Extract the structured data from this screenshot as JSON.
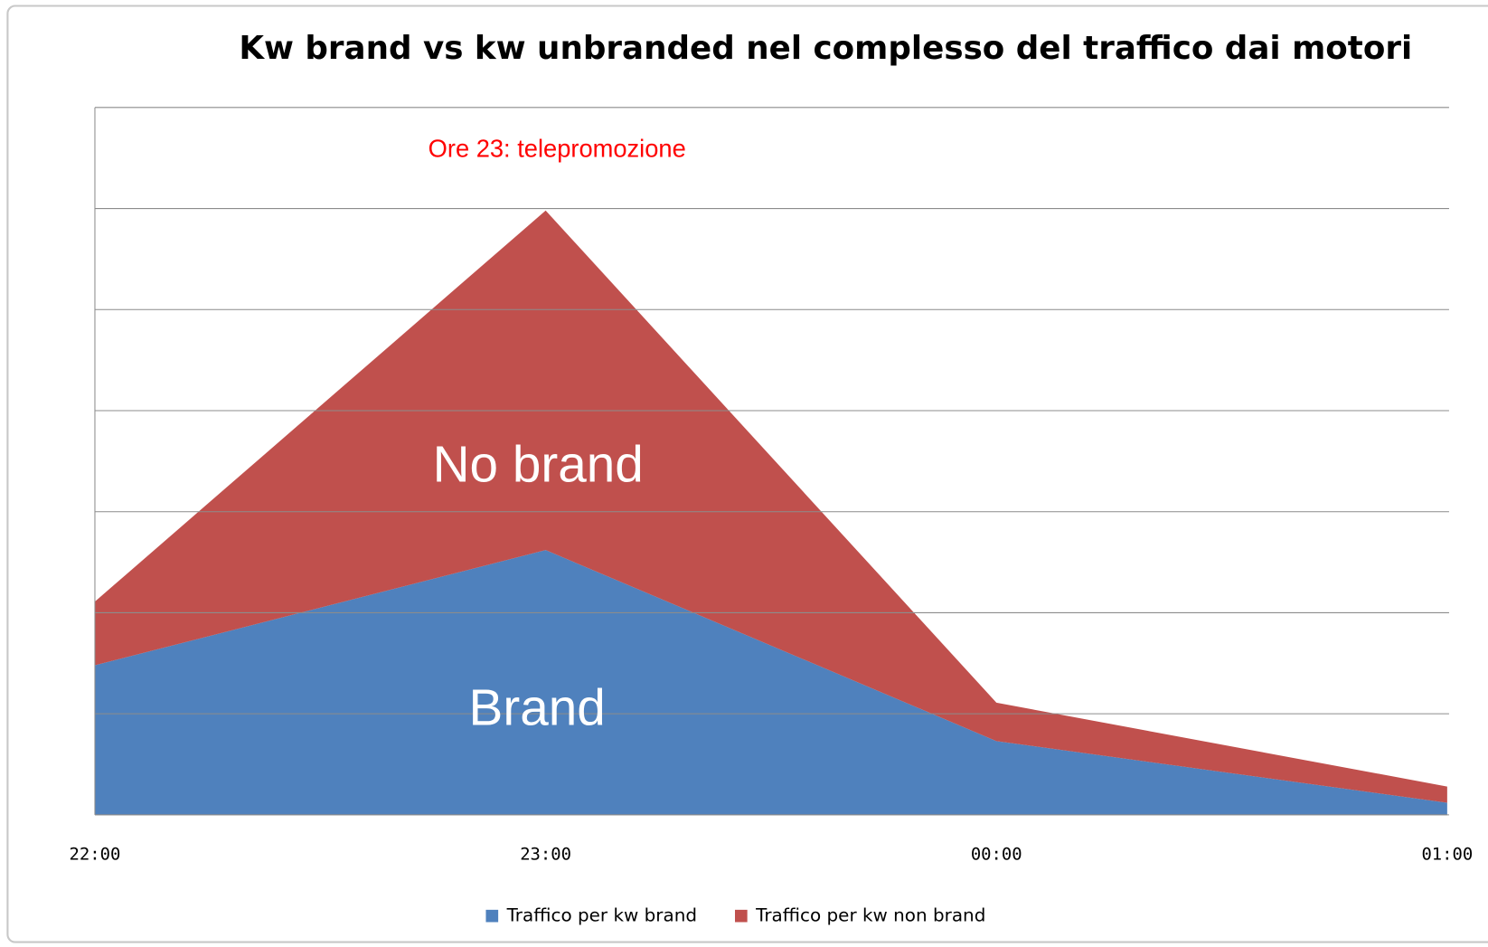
{
  "chart_data": {
    "type": "stacked_area",
    "title": "Kw brand vs kw unbranded nel complesso del traffico dai motori",
    "categories": [
      "22:00",
      "23:00",
      "00:00",
      "01:00"
    ],
    "series": [
      {
        "name": "Traffico per kw brand",
        "color": "#4f81bd",
        "values": [
          1.48,
          2.62,
          0.73,
          0.12
        ]
      },
      {
        "name": "Traffico per kw non brand",
        "color": "#c0504d",
        "values": [
          0.63,
          3.36,
          0.38,
          0.16
        ]
      }
    ],
    "ylim": [
      0,
      7
    ],
    "yticks": [
      0,
      1,
      2,
      3,
      4,
      5,
      6,
      7
    ],
    "grid": true,
    "legend": "bottom",
    "annotations": [
      {
        "text": "Ore 23: telepromozione",
        "color": "#ff0000"
      },
      {
        "text": "No brand",
        "color": "#ffffff"
      },
      {
        "text": "Brand",
        "color": "#ffffff"
      }
    ]
  }
}
